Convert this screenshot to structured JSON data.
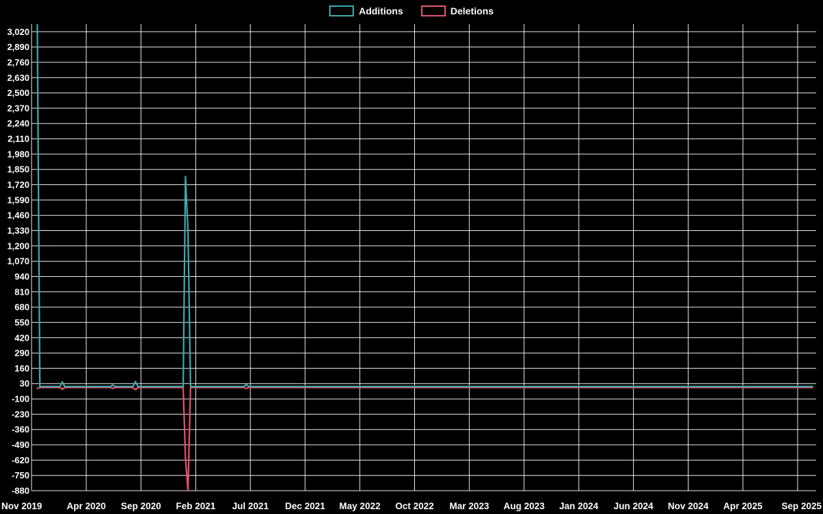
{
  "chart_data": {
    "type": "line",
    "title": "",
    "background": "#000000",
    "grid": true,
    "grid_color": "#ececec",
    "text_color": "#ffffff",
    "legend_position": "top-center",
    "legend": [
      {
        "label": "Additions",
        "color": "#3fabb0"
      },
      {
        "label": "Deletions",
        "color": "#e8546f"
      }
    ],
    "xlabel": "",
    "ylabel": "",
    "x_tick_labels": [
      "Nov 2019",
      "Apr 2020",
      "Sep 2020",
      "Feb 2021",
      "Jul 2021",
      "Dec 2021",
      "May 2022",
      "Oct 2022",
      "Mar 2023",
      "Aug 2023",
      "Jan 2024",
      "Jun 2024",
      "Nov 2024",
      "Apr 2025",
      "Sep 2025"
    ],
    "x_axis_start": "2019-11-01",
    "x_months_per_tick": 5,
    "y_ticks": [
      3020,
      2890,
      2760,
      2630,
      2500,
      2370,
      2240,
      2110,
      1980,
      1850,
      1720,
      1590,
      1460,
      1330,
      1200,
      1070,
      940,
      810,
      680,
      550,
      420,
      290,
      160,
      30,
      -100,
      -230,
      -360,
      -490,
      -620,
      -750,
      -880
    ],
    "ylim": [
      -880,
      3080
    ],
    "series": [
      {
        "name": "Additions",
        "color": "#3fabb0",
        "points": [
          [
            "2019-11-17",
            3080
          ],
          [
            "2019-11-24",
            5
          ],
          [
            "2020-01-19",
            5
          ],
          [
            "2020-01-26",
            45
          ],
          [
            "2020-02-02",
            5
          ],
          [
            "2020-06-07",
            5
          ],
          [
            "2020-06-14",
            18
          ],
          [
            "2020-06-21",
            5
          ],
          [
            "2020-08-09",
            5
          ],
          [
            "2020-08-16",
            48
          ],
          [
            "2020-08-23",
            5
          ],
          [
            "2020-12-27",
            5
          ],
          [
            "2021-01-03",
            1790
          ],
          [
            "2021-01-10",
            1330
          ],
          [
            "2021-01-17",
            5
          ],
          [
            "2021-06-13",
            5
          ],
          [
            "2021-06-20",
            22
          ],
          [
            "2021-06-27",
            5
          ],
          [
            "2025-10-12",
            5
          ]
        ]
      },
      {
        "name": "Deletions",
        "color": "#e8546f",
        "points": [
          [
            "2019-11-17",
            -12
          ],
          [
            "2019-11-24",
            -3
          ],
          [
            "2020-01-19",
            -3
          ],
          [
            "2020-01-26",
            -18
          ],
          [
            "2020-02-02",
            -3
          ],
          [
            "2020-06-07",
            -3
          ],
          [
            "2020-06-14",
            -10
          ],
          [
            "2020-06-21",
            -3
          ],
          [
            "2020-08-09",
            -3
          ],
          [
            "2020-08-16",
            -22
          ],
          [
            "2020-08-23",
            -3
          ],
          [
            "2020-12-27",
            -3
          ],
          [
            "2021-01-03",
            -600
          ],
          [
            "2021-01-10",
            -880
          ],
          [
            "2021-01-17",
            -3
          ],
          [
            "2021-06-13",
            -3
          ],
          [
            "2021-06-20",
            -12
          ],
          [
            "2021-06-27",
            -3
          ],
          [
            "2025-10-12",
            -3
          ]
        ]
      }
    ]
  }
}
